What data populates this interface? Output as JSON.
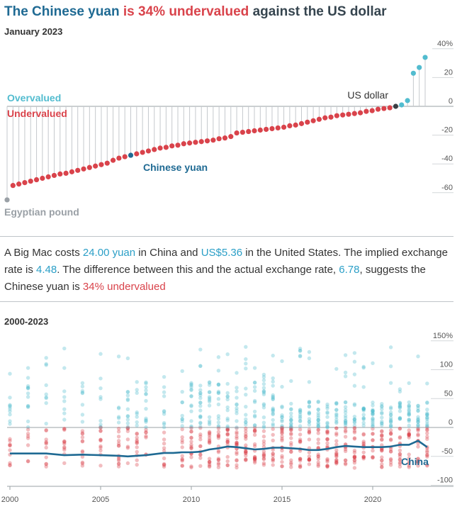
{
  "header": {
    "title_part1": "The Chinese yuan",
    "title_part2": " is 34% undervalued",
    "title_part3": " against the US dollar",
    "date": "January 2023"
  },
  "colors": {
    "over": "#52bccf",
    "under": "#d9434b",
    "china": "#1f6a93",
    "neutral": "#9aa0a6",
    "us": "#3a3f44"
  },
  "chart_data": [
    {
      "type": "scatter",
      "subtype": "lollipop",
      "y_ticks": [
        "40%",
        "20",
        "0",
        "-20",
        "-40",
        "-60"
      ],
      "ylim": [
        -70,
        40
      ],
      "labels": {
        "overvalued": "Overvalued",
        "undervalued": "Undervalued",
        "us": "US dollar",
        "china": "Chinese yuan",
        "lowest": "Egyptian pound"
      },
      "values": [
        -65,
        -55,
        -54,
        -53,
        -52,
        -51,
        -50,
        -49,
        -48,
        -47,
        -46.5,
        -45.5,
        -44.5,
        -43.5,
        -42.5,
        -41.5,
        -40.5,
        -39.5,
        -37.5,
        -36,
        -35,
        -34,
        -33,
        -32,
        -31,
        -30,
        -29,
        -28.5,
        -27.5,
        -27,
        -26,
        -25.5,
        -25,
        -24.5,
        -24,
        -23.5,
        -22.5,
        -22,
        -21,
        -18.5,
        -18,
        -17.5,
        -17,
        -16.5,
        -16,
        -15.5,
        -15,
        -14.5,
        -13.5,
        -13,
        -12,
        -11,
        -10,
        -9,
        -8,
        -7.5,
        -6.5,
        -6,
        -5.5,
        -5,
        -4.5,
        -3.5,
        -3,
        -2,
        -1.5,
        -1,
        0,
        1,
        4,
        23,
        27,
        34
      ],
      "highlight": {
        "china_index": 21,
        "us_index": 66,
        "lowest_index": 0
      }
    },
    {
      "type": "line",
      "label": "2000-2023",
      "x_ticks": [
        "2000",
        "2005",
        "2010",
        "2015",
        "2020"
      ],
      "y_ticks": [
        "150%",
        "100",
        "50",
        "0",
        "-50",
        "-100"
      ],
      "xlim": [
        1999.6,
        2023.6
      ],
      "ylim": [
        -100,
        150
      ],
      "series": [
        {
          "name": "China",
          "x": [
            2000,
            2001,
            2002,
            2003,
            2004,
            2005,
            2006,
            2006.5,
            2007,
            2007.5,
            2008.5,
            2009,
            2009.5,
            2010,
            2010.5,
            2011,
            2011.5,
            2012,
            2012.5,
            2013,
            2013.5,
            2014,
            2014.5,
            2015,
            2015.5,
            2016,
            2016.5,
            2017,
            2017.5,
            2018,
            2018.5,
            2019,
            2019.5,
            2020,
            2020.5,
            2021,
            2021.5,
            2022,
            2022.5,
            2023
          ],
          "values": [
            -45,
            -45,
            -45,
            -48,
            -47,
            -48,
            -49,
            -50,
            -49,
            -48,
            -44,
            -44,
            -43,
            -43,
            -42,
            -38,
            -36,
            -33,
            -34,
            -36,
            -38,
            -37,
            -35,
            -35,
            -36,
            -37,
            -39,
            -39,
            -37,
            -34,
            -32,
            -33,
            -34,
            -34,
            -34,
            -33,
            -30,
            -30,
            -23,
            -34
          ]
        }
      ]
    }
  ],
  "explanation": {
    "p1": "A Big Mac costs ",
    "local_price": "24.00 yuan",
    "p2": " in China and ",
    "us_price": "US$5.36",
    "p3": " in the United States. The implied exchange rate is ",
    "implied_rate": "4.48",
    "p4": ". The difference between this and the actual exchange rate, ",
    "actual_rate": "6.78",
    "p5": ", suggests the Chinese yuan is ",
    "valuation": "34% undervalued"
  },
  "history": {
    "series_label": "China"
  }
}
